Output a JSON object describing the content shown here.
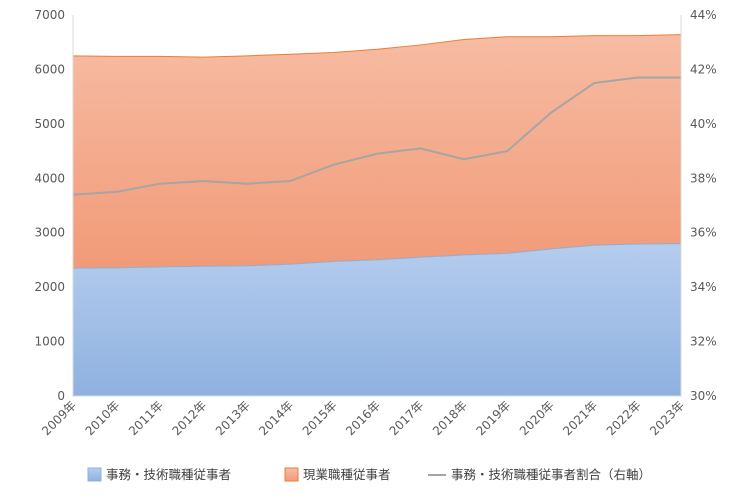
{
  "chart_data": {
    "type": "area",
    "categories": [
      "2009年",
      "2010年",
      "2011年",
      "2012年",
      "2013年",
      "2014年",
      "2015年",
      "2016年",
      "2017年",
      "2018年",
      "2019年",
      "2020年",
      "2021年",
      "2022年",
      "2023年"
    ],
    "series": [
      {
        "name": "事務・技術職種従事者",
        "axis": "left",
        "kind": "area",
        "color": "#9dbde8",
        "values": [
          2350,
          2355,
          2370,
          2385,
          2390,
          2420,
          2470,
          2500,
          2550,
          2590,
          2620,
          2700,
          2770,
          2790,
          2800
        ]
      },
      {
        "name": "現業職種従事者",
        "axis": "left",
        "kind": "area_stacked",
        "color": "#f4a98a",
        "values": [
          3900,
          3885,
          3870,
          3840,
          3860,
          3860,
          3840,
          3870,
          3900,
          3960,
          3980,
          3900,
          3850,
          3830,
          3840
        ]
      },
      {
        "name": "事務・技術職種従事者割合（右軸）",
        "axis": "right",
        "kind": "line",
        "color": "#a5a5a5",
        "values": [
          37.4,
          37.5,
          37.8,
          37.9,
          37.8,
          37.9,
          38.5,
          38.9,
          39.1,
          38.7,
          39.0,
          40.4,
          41.5,
          41.7,
          41.7
        ]
      }
    ],
    "y_left": {
      "min": 0,
      "max": 7000,
      "step": 1000,
      "ticks": [
        "0",
        "1000",
        "2000",
        "3000",
        "4000",
        "5000",
        "6000",
        "7000"
      ]
    },
    "y_right": {
      "min": 30,
      "max": 44,
      "step": 2,
      "ticks": [
        "30%",
        "32%",
        "34%",
        "36%",
        "38%",
        "40%",
        "42%",
        "44%"
      ]
    },
    "grid": false,
    "legend_position": "bottom"
  }
}
